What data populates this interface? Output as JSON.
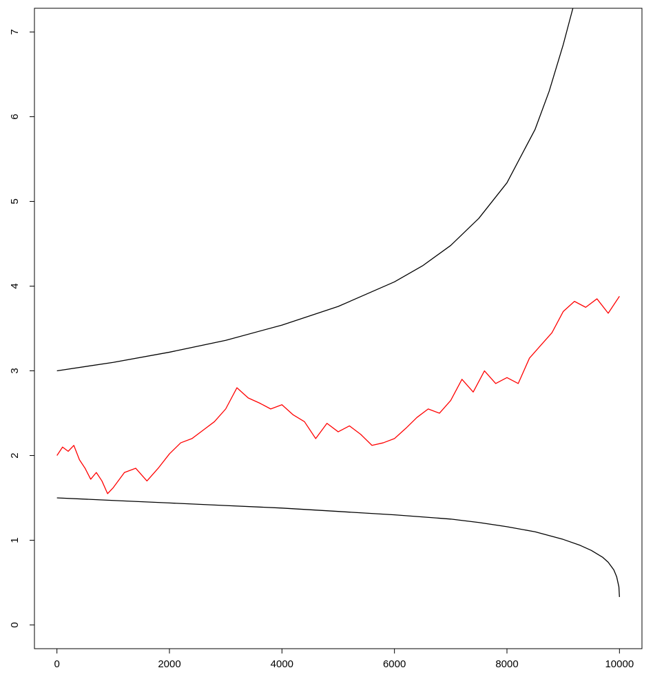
{
  "chart_data": {
    "type": "line",
    "title": "",
    "xlabel": "",
    "ylabel": "",
    "xlim": [
      -400,
      10400
    ],
    "ylim": [
      -0.28,
      7.28
    ],
    "x_ticks": [
      0,
      2000,
      4000,
      6000,
      8000,
      10000
    ],
    "y_ticks": [
      0,
      1,
      2,
      3,
      4,
      5,
      6,
      7
    ],
    "grid": false,
    "legend": "none",
    "series": [
      {
        "color": "#000000",
        "x": [
          0,
          1000,
          2000,
          3000,
          4000,
          5000,
          6000,
          6500,
          7000,
          7500,
          8000,
          8500,
          8750,
          9000,
          9100,
          9200,
          9300
        ],
        "y": [
          3.0,
          3.1,
          3.22,
          3.36,
          3.54,
          3.76,
          4.05,
          4.24,
          4.48,
          4.8,
          5.22,
          5.85,
          6.3,
          6.85,
          7.1,
          7.35,
          7.6
        ]
      },
      {
        "color": "#ff0000",
        "x": [
          0,
          100,
          200,
          300,
          400,
          500,
          600,
          700,
          800,
          900,
          1000,
          1200,
          1400,
          1600,
          1800,
          2000,
          2200,
          2400,
          2600,
          2800,
          3000,
          3200,
          3400,
          3600,
          3800,
          4000,
          4200,
          4400,
          4600,
          4800,
          5000,
          5200,
          5400,
          5600,
          5800,
          6000,
          6200,
          6400,
          6600,
          6800,
          7000,
          7200,
          7400,
          7600,
          7800,
          8000,
          8200,
          8400,
          8600,
          8800,
          9000,
          9200,
          9400,
          9600,
          9800,
          10000
        ],
        "y": [
          2.0,
          2.1,
          2.05,
          2.12,
          1.95,
          1.85,
          1.72,
          1.8,
          1.7,
          1.55,
          1.62,
          1.8,
          1.85,
          1.7,
          1.85,
          2.02,
          2.15,
          2.2,
          2.3,
          2.4,
          2.55,
          2.8,
          2.68,
          2.62,
          2.55,
          2.6,
          2.48,
          2.4,
          2.2,
          2.38,
          2.28,
          2.35,
          2.25,
          2.12,
          2.15,
          2.2,
          2.32,
          2.45,
          2.55,
          2.5,
          2.65,
          2.9,
          2.75,
          3.0,
          2.85,
          2.92,
          2.85,
          3.15,
          3.3,
          3.45,
          3.7,
          3.82,
          3.75,
          3.85,
          3.68,
          3.88
        ]
      },
      {
        "color": "#000000",
        "x": [
          0,
          1000,
          2000,
          3000,
          4000,
          5000,
          6000,
          7000,
          7500,
          8000,
          8500,
          9000,
          9300,
          9500,
          9700,
          9800,
          9900,
          9950,
          9990,
          10000
        ],
        "y": [
          1.5,
          1.47,
          1.44,
          1.41,
          1.38,
          1.34,
          1.3,
          1.25,
          1.21,
          1.16,
          1.1,
          1.01,
          0.94,
          0.88,
          0.8,
          0.74,
          0.65,
          0.57,
          0.45,
          0.33
        ]
      }
    ]
  }
}
